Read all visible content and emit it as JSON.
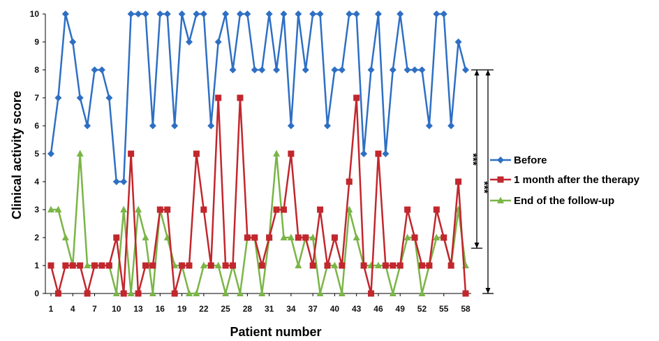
{
  "chart_data": {
    "type": "line",
    "xlabel": "Patient number",
    "ylabel": "Clinical activity score",
    "x_ticks": [
      1,
      4,
      7,
      10,
      13,
      16,
      19,
      22,
      25,
      28,
      31,
      34,
      37,
      40,
      43,
      46,
      49,
      52,
      55,
      58
    ],
    "y_ticks": [
      0,
      1,
      2,
      3,
      4,
      5,
      6,
      7,
      8,
      9,
      10
    ],
    "xlim": [
      1,
      58
    ],
    "ylim": [
      0,
      10
    ],
    "grid": false,
    "legend_position": "right",
    "significance_markers": [
      "***",
      "***"
    ],
    "series": [
      {
        "name": "Before",
        "color": "#2e6fc4",
        "marker": "diamond",
        "values": [
          5,
          7,
          10,
          9,
          7,
          6,
          8,
          8,
          7,
          4,
          4,
          10,
          10,
          10,
          6,
          10,
          10,
          6,
          10,
          9,
          10,
          10,
          6,
          9,
          10,
          8,
          10,
          10,
          8,
          8,
          10,
          8,
          10,
          6,
          10,
          8,
          10,
          10,
          6,
          8,
          8,
          10,
          10,
          5,
          8,
          10,
          5,
          8,
          10,
          8,
          8,
          8,
          6,
          10,
          10,
          6,
          9,
          8
        ]
      },
      {
        "name": "1 month after the therapy",
        "color": "#c1272d",
        "marker": "square",
        "values": [
          1,
          0,
          1,
          1,
          1,
          0,
          1,
          1,
          1,
          2,
          0,
          5,
          0,
          1,
          1,
          3,
          3,
          0,
          1,
          1,
          5,
          3,
          1,
          7,
          1,
          1,
          7,
          2,
          2,
          1,
          2,
          3,
          3,
          5,
          2,
          2,
          1,
          3,
          1,
          2,
          1,
          4,
          7,
          1,
          0,
          5,
          1,
          1,
          1,
          3,
          2,
          1,
          1,
          3,
          2,
          1,
          4,
          0
        ]
      },
      {
        "name": "End of the follow-up",
        "color": "#7ab547",
        "marker": "triangle",
        "values": [
          3,
          3,
          2,
          1,
          5,
          1,
          1,
          1,
          1,
          0,
          3,
          0,
          3,
          2,
          0,
          3,
          2,
          1,
          1,
          0,
          0,
          1,
          1,
          1,
          0,
          1,
          0,
          2,
          2,
          0,
          2,
          5,
          2,
          2,
          1,
          2,
          2,
          0,
          1,
          1,
          0,
          3,
          2,
          1,
          1,
          1,
          1,
          0,
          1,
          2,
          2,
          0,
          1,
          2,
          2,
          1,
          3,
          1
        ]
      }
    ]
  }
}
